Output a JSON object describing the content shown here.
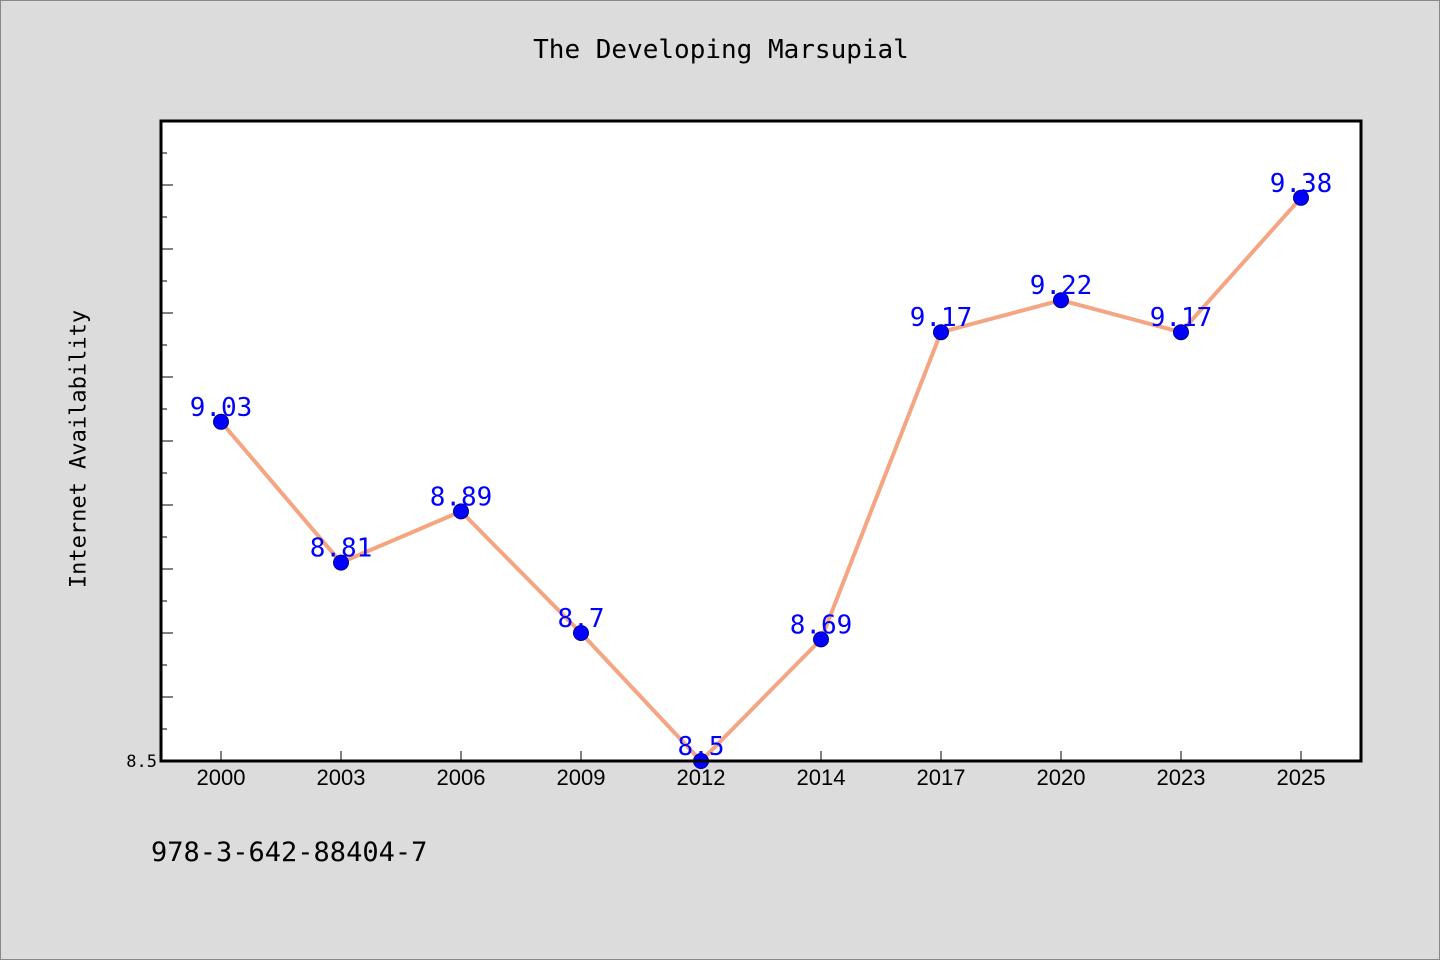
{
  "chart_data": {
    "type": "line",
    "title": "The Developing Marsupial",
    "xlabel": "",
    "ylabel": "Internet Availability",
    "categories": [
      "2000",
      "2003",
      "2006",
      "2009",
      "2012",
      "2014",
      "2017",
      "2020",
      "2023",
      "2025"
    ],
    "series": [
      {
        "values": [
          9.03,
          8.81,
          8.89,
          8.7,
          8.5,
          8.69,
          9.17,
          9.22,
          9.17,
          9.38
        ],
        "labels": [
          "9.03",
          "8.81",
          "8.89",
          "8.7",
          "8.5",
          "8.69",
          "9.17",
          "9.22",
          "9.17",
          "9.38"
        ]
      }
    ],
    "ytick_labels": [
      "8.5"
    ],
    "ylim": [
      8.5,
      9.5
    ],
    "grid": false,
    "line_color": "#f4a582",
    "marker_color": "#0000ff",
    "label_color": "#0000ff",
    "background_color": "#dcdcdc",
    "plot_background_color": "#ffffff"
  },
  "footnote": "978-3-642-88404-7"
}
